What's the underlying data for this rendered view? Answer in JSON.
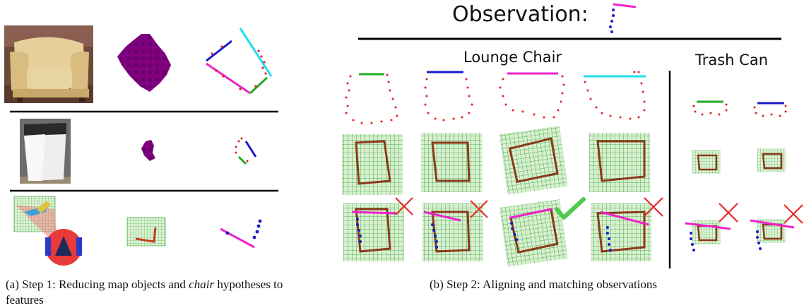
{
  "header": {
    "observation_label": "Observation:"
  },
  "panel_b": {
    "group_left": "Lounge Chair",
    "group_right": "Trash Can"
  },
  "captions": {
    "a_prefix": "(a) Step 1: Reducing map objects and ",
    "a_em": "chair",
    "a_suffix": " hypotheses to features",
    "b": "(b) Step 2: Aligning and matching observations"
  },
  "feature_colors": {
    "green": "#22aa22",
    "blue": "#1a1acc",
    "magenta": "#ee22cc",
    "cyan": "#22ddee",
    "red_points": "#e02020",
    "purple_blob": "#800080",
    "grid": "#2e9a2e",
    "wall": "#8b3a1a"
  },
  "results": {
    "lounge": [
      "reject",
      "reject",
      "accept",
      "reject"
    ],
    "trash": [
      "reject",
      "reject"
    ]
  }
}
